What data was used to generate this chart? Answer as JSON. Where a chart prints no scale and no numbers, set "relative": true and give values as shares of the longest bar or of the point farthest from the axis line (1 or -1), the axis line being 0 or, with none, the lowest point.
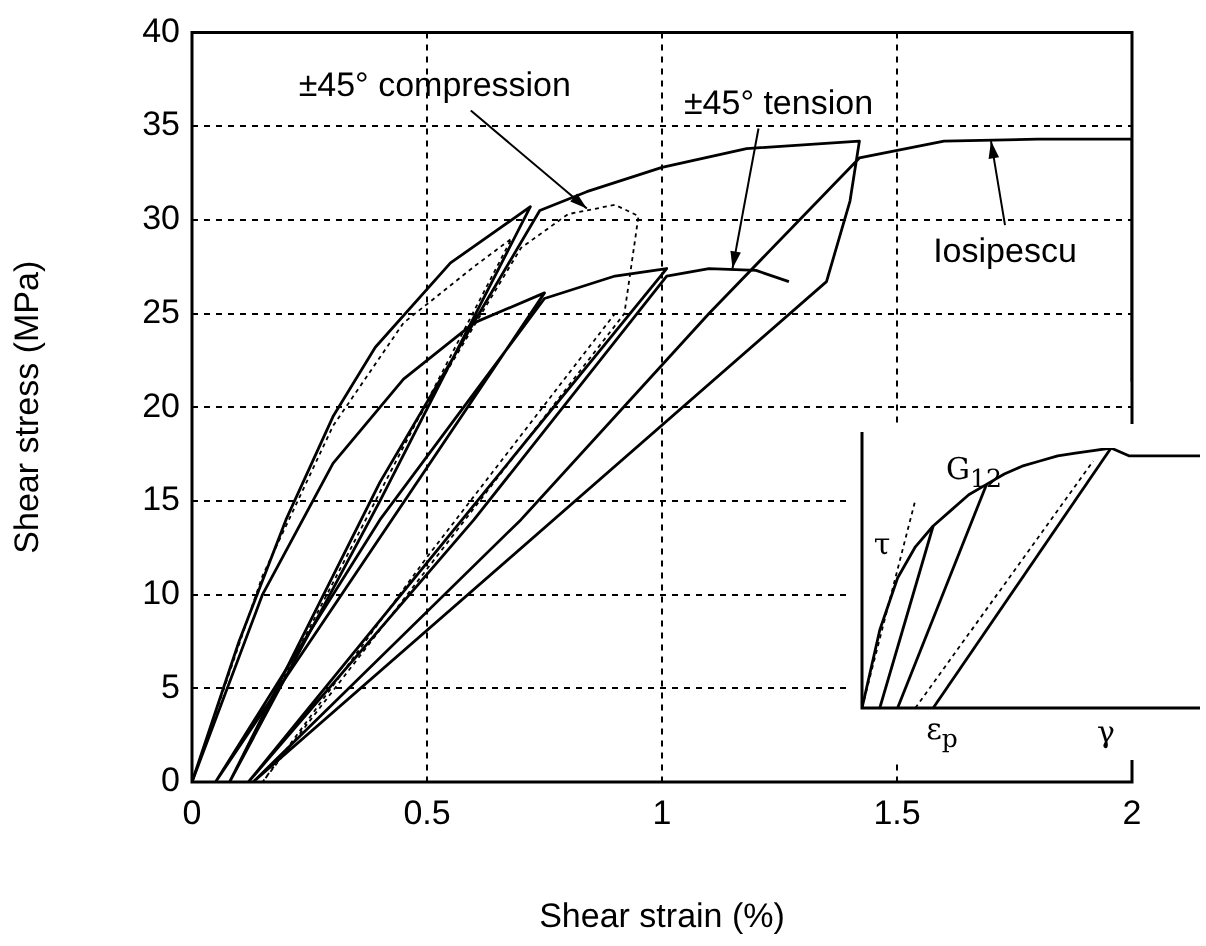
{
  "chart_data": [
    {
      "type": "line",
      "xlabel": "Shear strain (%)",
      "ylabel": "Shear stress (MPa)",
      "xlim": [
        0,
        2
      ],
      "ylim": [
        0,
        40
      ],
      "xticks": [
        0,
        0.5,
        1,
        1.5,
        2
      ],
      "yticks": [
        0,
        5,
        10,
        15,
        20,
        25,
        30,
        35,
        40
      ],
      "grid": true,
      "legend": false,
      "marker": "none",
      "series": [
        {
          "color": "#000000",
          "line_style": "solid",
          "x": [
            0,
            0.1,
            0.2,
            0.3,
            0.39,
            0.55,
            0.72,
            0.4,
            0.08,
            0.4,
            0.74,
            0.84,
            1.0,
            1.18,
            1.42,
            1.4,
            1.35,
            0.13,
            0.7,
            1.1,
            1.42,
            1.6,
            1.8,
            2.0,
            2.0
          ],
          "values": [
            0,
            7.5,
            14,
            19.5,
            23.2,
            27.7,
            30.7,
            15,
            0,
            16,
            30.5,
            31.5,
            32.8,
            33.8,
            34.2,
            31,
            26.7,
            0,
            14,
            25,
            33.3,
            34.2,
            34.3,
            34.3,
            21.4
          ]
        },
        {
          "color": "#000000",
          "line_style": "solid",
          "x": [
            0,
            0.15,
            0.3,
            0.45,
            0.6,
            0.75,
            0.05,
            0.4,
            0.75,
            0.9,
            1.01,
            0.12,
            0.6,
            1.01,
            1.1,
            1.2,
            1.27
          ],
          "values": [
            0,
            10,
            17,
            21.5,
            24.5,
            26.1,
            0,
            14,
            25.8,
            27,
            27.4,
            0,
            14,
            27,
            27.4,
            27.3,
            26.7
          ]
        },
        {
          "color": "#000000",
          "line_style": "dotted",
          "x": [
            0,
            0.15,
            0.3,
            0.45,
            0.6,
            0.68,
            0.08,
            0.4,
            0.7,
            0.8,
            0.9,
            0.95,
            0.92,
            0.15,
            0.5,
            0.9
          ],
          "values": [
            0,
            11,
            19,
            24.5,
            27.5,
            29,
            0,
            16,
            28.5,
            30.3,
            30.8,
            30.2,
            25,
            0,
            12,
            25
          ]
        }
      ],
      "annotations": [
        {
          "text": "±45° compression",
          "x": 0.84,
          "y": 30.6
        },
        {
          "text": "±45° tension",
          "x": 1.15,
          "y": 27.4
        },
        {
          "text": "Iosipescu",
          "x": 1.7,
          "y": 34.2
        }
      ]
    },
    {
      "type": "line",
      "relative": true,
      "xlabel": "γ",
      "ylabel": "τ",
      "legend": false,
      "marker": "none",
      "categories": [
        null,
        null,
        null,
        null,
        null,
        null,
        null,
        null,
        null,
        null,
        null,
        null,
        null,
        null,
        null,
        null,
        null,
        null,
        null,
        null
      ],
      "series": [
        {
          "color": "#000000",
          "line_style": "solid",
          "values": [
            0,
            0.3,
            0.5,
            0.62,
            0.7,
            0.76,
            0.82,
            0.86,
            0.9,
            0.93,
            0.95,
            0.97,
            0.98,
            0.99,
            1,
            0.97,
            0.97,
            0.97,
            0.97,
            0.97
          ]
        },
        {
          "color": "#000000",
          "line_style": "solid",
          "values": [
            null,
            0,
            null,
            null,
            0.7,
            null,
            null,
            null,
            null,
            null,
            null,
            null,
            null,
            null,
            null,
            null,
            null,
            null,
            null,
            null
          ]
        },
        {
          "color": "#000000",
          "line_style": "solid",
          "values": [
            null,
            null,
            0,
            null,
            null,
            null,
            null,
            0.86,
            null,
            null,
            null,
            null,
            null,
            null,
            null,
            null,
            null,
            null,
            null,
            null
          ]
        },
        {
          "color": "#000000",
          "line_style": "solid",
          "values": [
            null,
            null,
            null,
            null,
            0,
            null,
            null,
            null,
            null,
            null,
            null,
            null,
            null,
            null,
            1,
            null,
            null,
            null,
            null,
            null
          ]
        },
        {
          "color": "#000000",
          "line_style": "dotted",
          "values": [
            0,
            null,
            null,
            0.8,
            null,
            null,
            null,
            null,
            null,
            null,
            null,
            null,
            null,
            null,
            null,
            null,
            null,
            null,
            null,
            null
          ]
        },
        {
          "color": "#000000",
          "line_style": "dotted",
          "values": [
            null,
            null,
            null,
            0,
            null,
            null,
            null,
            null,
            null,
            null,
            null,
            null,
            null,
            0.95,
            null,
            null,
            null,
            null,
            null,
            null
          ]
        }
      ],
      "annotations": [
        "G$_{12}$",
        "ε$_{p}$"
      ]
    }
  ]
}
